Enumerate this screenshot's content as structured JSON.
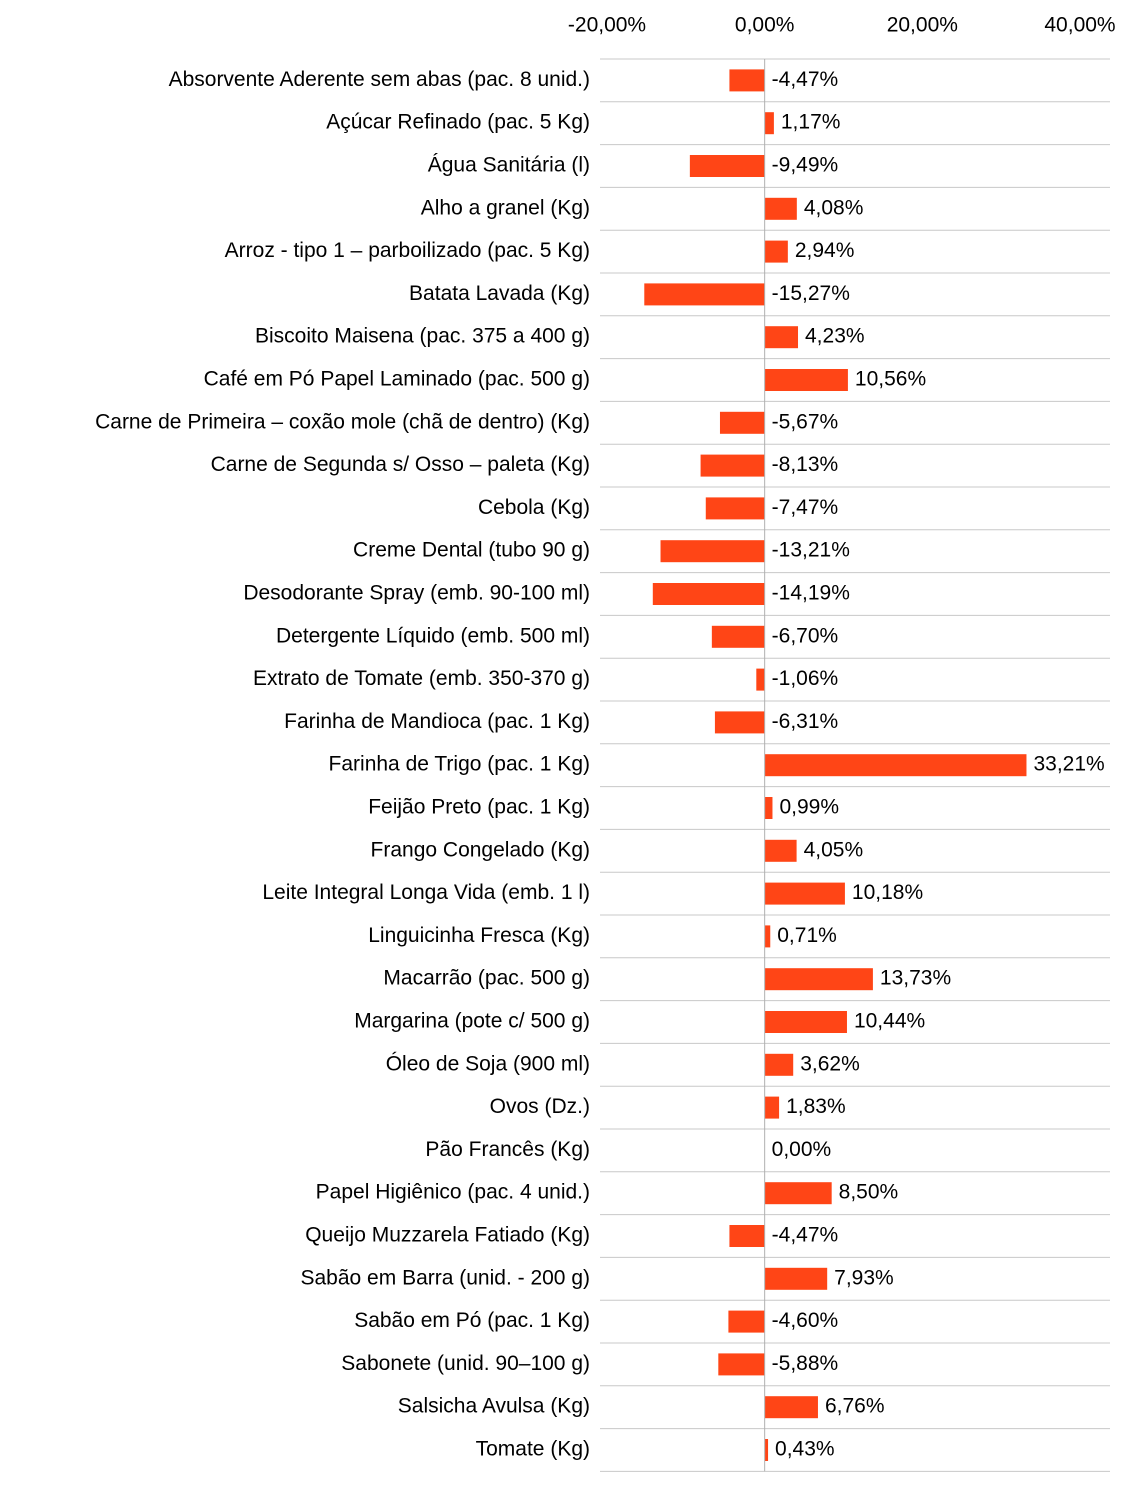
{
  "chart_data": {
    "type": "bar",
    "orientation": "horizontal",
    "color": "#ff4516",
    "categories": [
      "Absorvente Aderente sem abas (pac. 8 unid.)",
      "Açúcar Refinado (pac. 5 Kg)",
      "Água Sanitária (l)",
      "Alho a granel (Kg)",
      "Arroz - tipo 1 – parboilizado (pac. 5 Kg)",
      "Batata Lavada (Kg)",
      "Biscoito Maisena (pac. 375 a 400 g)",
      "Café em Pó Papel Laminado (pac. 500 g)",
      "Carne de Primeira – coxão mole (chã de dentro) (Kg)",
      "Carne de Segunda s/ Osso – paleta (Kg)",
      "Cebola (Kg)",
      "Creme Dental (tubo 90 g)",
      "Desodorante Spray (emb. 90-100 ml)",
      "Detergente Líquido (emb. 500 ml)",
      "Extrato de Tomate (emb. 350-370 g)",
      "Farinha de Mandioca (pac. 1 Kg)",
      "Farinha de Trigo (pac. 1 Kg)",
      "Feijão Preto (pac. 1 Kg)",
      "Frango Congelado (Kg)",
      "Leite Integral Longa Vida (emb. 1 l)",
      "Linguicinha Fresca (Kg)",
      "Macarrão (pac. 500 g)",
      "Margarina (pote c/ 500 g)",
      "Óleo de Soja (900 ml)",
      "Ovos (Dz.)",
      "Pão Francês (Kg)",
      "Papel Higiênico (pac. 4 unid.)",
      "Queijo Muzzarela Fatiado (Kg)",
      "Sabão em Barra (unid. - 200 g)",
      "Sabão em Pó (pac. 1 Kg)",
      "Sabonete (unid. 90–100 g)",
      "Salsicha Avulsa (Kg)",
      "Tomate (Kg)"
    ],
    "values": [
      -4.47,
      1.17,
      -9.49,
      4.08,
      2.94,
      -15.27,
      4.23,
      10.56,
      -5.67,
      -8.13,
      -7.47,
      -13.21,
      -14.19,
      -6.7,
      -1.06,
      -6.31,
      33.21,
      0.99,
      4.05,
      10.18,
      0.71,
      13.73,
      10.44,
      3.62,
      1.83,
      0,
      8.5,
      -4.47,
      7.93,
      -4.6,
      -5.88,
      6.76,
      0.43
    ],
    "value_labels": [
      "-4,47%",
      "1,17%",
      "-9,49%",
      "4,08%",
      "2,94%",
      "-15,27%",
      "4,23%",
      "10,56%",
      "-5,67%",
      "-8,13%",
      "-7,47%",
      "-13,21%",
      "-14,19%",
      "-6,70%",
      "-1,06%",
      "-6,31%",
      "33,21%",
      "0,99%",
      "4,05%",
      "10,18%",
      "0,71%",
      "13,73%",
      "10,44%",
      "3,62%",
      "1,83%",
      "0,00%",
      "8,50%",
      "-4,47%",
      "7,93%",
      "-4,60%",
      "-5,88%",
      "6,76%",
      "0,43%"
    ],
    "xlim": [
      -20,
      40
    ],
    "xticks": [
      {
        "value": -20,
        "label": "-20,00%"
      },
      {
        "value": 0,
        "label": "0,00%"
      },
      {
        "value": 20,
        "label": "20,00%"
      },
      {
        "value": 40,
        "label": "40,00%"
      }
    ]
  }
}
